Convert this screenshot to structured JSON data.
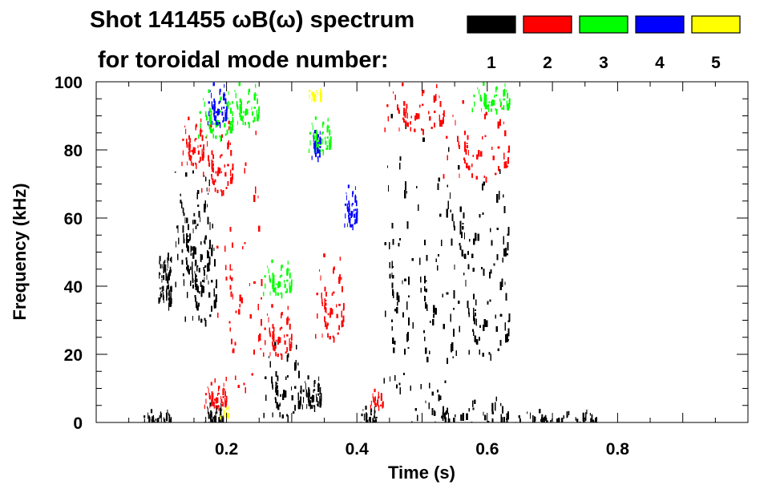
{
  "chart_data": {
    "type": "heatmap",
    "title_line1": "Shot 141455 ωB(ω) spectrum",
    "title_line2": "for toroidal mode number:",
    "xlabel": "Time (s)",
    "ylabel": "Frequency (kHz)",
    "xlim": [
      0.0,
      1.0
    ],
    "ylim": [
      0,
      100
    ],
    "x_ticks": [
      {
        "value": 0.2,
        "label": "0.2"
      },
      {
        "value": 0.4,
        "label": "0.4"
      },
      {
        "value": 0.6,
        "label": "0.6"
      },
      {
        "value": 0.8,
        "label": "0.8"
      }
    ],
    "y_ticks": [
      {
        "value": 0,
        "label": "0"
      },
      {
        "value": 20,
        "label": "20"
      },
      {
        "value": 40,
        "label": "40"
      },
      {
        "value": 60,
        "label": "60"
      },
      {
        "value": 80,
        "label": "80"
      },
      {
        "value": 100,
        "label": "100"
      }
    ],
    "legend": [
      {
        "n": 1,
        "label": "1",
        "color": "#000000"
      },
      {
        "n": 2,
        "label": "2",
        "color": "#ff0000"
      },
      {
        "n": 3,
        "label": "3",
        "color": "#00ff00"
      },
      {
        "n": 4,
        "label": "4",
        "color": "#0000ff"
      },
      {
        "n": 5,
        "label": "5",
        "color": "#ffff00"
      }
    ],
    "regions": [
      {
        "mode": 1,
        "t": [
          0.095,
          0.115
        ],
        "f": [
          35,
          50
        ]
      },
      {
        "mode": 1,
        "t": [
          0.12,
          0.175
        ],
        "f": [
          40,
          74
        ]
      },
      {
        "mode": 1,
        "t": [
          0.135,
          0.185
        ],
        "f": [
          30,
          60
        ]
      },
      {
        "mode": 1,
        "t": [
          0.07,
          0.115
        ],
        "f": [
          0,
          4
        ]
      },
      {
        "mode": 1,
        "t": [
          0.165,
          0.195
        ],
        "f": [
          0,
          6
        ]
      },
      {
        "mode": 1,
        "t": [
          0.255,
          0.315
        ],
        "f": [
          2,
          24
        ]
      },
      {
        "mode": 1,
        "t": [
          0.315,
          0.345
        ],
        "f": [
          5,
          14
        ]
      },
      {
        "mode": 1,
        "t": [
          0.405,
          0.43
        ],
        "f": [
          0,
          5
        ]
      },
      {
        "mode": 1,
        "t": [
          0.44,
          0.48
        ],
        "f": [
          10,
          92
        ]
      },
      {
        "mode": 1,
        "t": [
          0.48,
          0.55
        ],
        "f": [
          8,
          85
        ]
      },
      {
        "mode": 1,
        "t": [
          0.52,
          0.635
        ],
        "f": [
          45,
          76
        ]
      },
      {
        "mode": 1,
        "t": [
          0.55,
          0.635
        ],
        "f": [
          20,
          50
        ]
      },
      {
        "mode": 1,
        "t": [
          0.48,
          0.635
        ],
        "f": [
          0,
          8
        ]
      },
      {
        "mode": 1,
        "t": [
          0.64,
          0.77
        ],
        "f": [
          0,
          4
        ]
      },
      {
        "mode": 2,
        "t": [
          0.13,
          0.165
        ],
        "f": [
          76,
          90
        ]
      },
      {
        "mode": 2,
        "t": [
          0.16,
          0.21
        ],
        "f": [
          68,
          88
        ]
      },
      {
        "mode": 2,
        "t": [
          0.18,
          0.255
        ],
        "f": [
          10,
          90
        ]
      },
      {
        "mode": 2,
        "t": [
          0.255,
          0.3
        ],
        "f": [
          20,
          35
        ]
      },
      {
        "mode": 2,
        "t": [
          0.335,
          0.38
        ],
        "f": [
          25,
          50
        ]
      },
      {
        "mode": 2,
        "t": [
          0.44,
          0.535
        ],
        "f": [
          86,
          100
        ]
      },
      {
        "mode": 2,
        "t": [
          0.53,
          0.635
        ],
        "f": [
          72,
          95
        ]
      },
      {
        "mode": 2,
        "t": [
          0.42,
          0.44
        ],
        "f": [
          5,
          10
        ]
      },
      {
        "mode": 2,
        "t": [
          0.165,
          0.2
        ],
        "f": [
          5,
          12
        ]
      },
      {
        "mode": 3,
        "t": [
          0.155,
          0.21
        ],
        "f": [
          84,
          98
        ]
      },
      {
        "mode": 3,
        "t": [
          0.205,
          0.25
        ],
        "f": [
          88,
          100
        ]
      },
      {
        "mode": 3,
        "t": [
          0.325,
          0.36
        ],
        "f": [
          80,
          90
        ]
      },
      {
        "mode": 3,
        "t": [
          0.255,
          0.3
        ],
        "f": [
          38,
          48
        ]
      },
      {
        "mode": 3,
        "t": [
          0.575,
          0.635
        ],
        "f": [
          92,
          100
        ]
      },
      {
        "mode": 4,
        "t": [
          0.17,
          0.2
        ],
        "f": [
          88,
          100
        ]
      },
      {
        "mode": 4,
        "t": [
          0.38,
          0.4
        ],
        "f": [
          58,
          70
        ]
      },
      {
        "mode": 4,
        "t": [
          0.33,
          0.345
        ],
        "f": [
          78,
          86
        ]
      },
      {
        "mode": 5,
        "t": [
          0.325,
          0.345
        ],
        "f": [
          95,
          100
        ]
      },
      {
        "mode": 5,
        "t": [
          0.19,
          0.205
        ],
        "f": [
          2,
          5
        ]
      }
    ]
  }
}
